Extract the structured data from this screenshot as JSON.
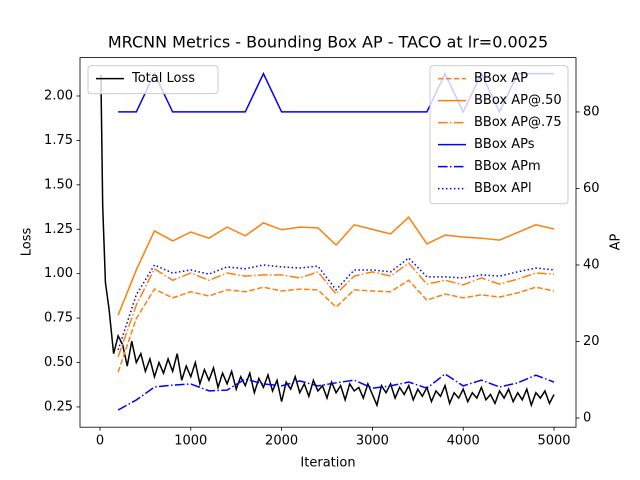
{
  "chart_data": {
    "type": "line",
    "title": "MRCNN Metrics - Bounding Box AP - TACO at lr=0.0025",
    "xlabel": "Iteration",
    "ylabel": "Loss",
    "y2label": "AP",
    "xlim": [
      -220,
      5242
    ],
    "xticks": [
      0,
      1000,
      2000,
      3000,
      4000,
      5000
    ],
    "ylim": [
      0.136,
      2.216
    ],
    "yticks": [
      0.25,
      {
        "value": 0.5,
        "label": "0.50"
      },
      0.75,
      {
        "value": 1.0,
        "label": "1.00"
      },
      1.25,
      {
        "value": 1.5,
        "label": "1.50"
      },
      1.75,
      {
        "value": 2.0,
        "label": "2.00"
      }
    ],
    "y2lim": [
      -2.4,
      94.2
    ],
    "y2ticks": [
      0,
      20,
      40,
      60,
      80
    ],
    "legend": "upper left",
    "legend2": "upper right",
    "series": [
      {
        "name": "Total Loss",
        "color": "#000000",
        "linestyle": "solid",
        "axis": "y",
        "x": [
          10,
          30,
          60,
          100,
          150,
          200,
          250,
          300,
          350,
          400,
          450,
          500,
          550,
          600,
          650,
          700,
          750,
          800,
          850,
          900,
          950,
          1000,
          1050,
          1100,
          1150,
          1200,
          1250,
          1300,
          1350,
          1400,
          1450,
          1500,
          1550,
          1600,
          1650,
          1700,
          1750,
          1800,
          1850,
          1900,
          1950,
          2000,
          2050,
          2100,
          2150,
          2200,
          2250,
          2300,
          2350,
          2400,
          2450,
          2500,
          2550,
          2600,
          2650,
          2700,
          2750,
          2800,
          2850,
          2900,
          2950,
          3000,
          3050,
          3100,
          3150,
          3200,
          3250,
          3300,
          3350,
          3400,
          3450,
          3500,
          3550,
          3600,
          3650,
          3700,
          3750,
          3800,
          3850,
          3900,
          3950,
          4000,
          4050,
          4100,
          4150,
          4200,
          4250,
          4300,
          4350,
          4400,
          4450,
          4500,
          4550,
          4600,
          4650,
          4700,
          4750,
          4800,
          4850,
          4900,
          4950,
          5000
        ],
        "values": [
          2.12,
          1.38,
          0.95,
          0.8,
          0.55,
          0.65,
          0.6,
          0.48,
          0.62,
          0.5,
          0.55,
          0.45,
          0.52,
          0.42,
          0.5,
          0.44,
          0.52,
          0.45,
          0.55,
          0.4,
          0.48,
          0.42,
          0.5,
          0.38,
          0.46,
          0.4,
          0.47,
          0.36,
          0.44,
          0.38,
          0.45,
          0.35,
          0.42,
          0.37,
          0.44,
          0.33,
          0.41,
          0.36,
          0.43,
          0.34,
          0.4,
          0.28,
          0.39,
          0.35,
          0.42,
          0.33,
          0.38,
          0.31,
          0.4,
          0.34,
          0.37,
          0.3,
          0.39,
          0.33,
          0.37,
          0.29,
          0.38,
          0.34,
          0.36,
          0.3,
          0.38,
          0.32,
          0.26,
          0.37,
          0.33,
          0.38,
          0.3,
          0.36,
          0.32,
          0.37,
          0.29,
          0.35,
          0.31,
          0.36,
          0.28,
          0.34,
          0.31,
          0.37,
          0.27,
          0.33,
          0.3,
          0.35,
          0.28,
          0.33,
          0.3,
          0.36,
          0.29,
          0.32,
          0.27,
          0.34,
          0.3,
          0.35,
          0.28,
          0.33,
          0.29,
          0.35,
          0.26,
          0.33,
          0.3,
          0.34,
          0.27,
          0.32
        ]
      },
      {
        "name": "BBox AP",
        "color": "#ff7f0e",
        "linestyle": "dashed",
        "axis": "y2",
        "x": [
          200,
          400,
          600,
          800,
          1000,
          1200,
          1400,
          1600,
          1800,
          2000,
          2200,
          2400,
          2600,
          2800,
          3000,
          3200,
          3400,
          3600,
          3800,
          4000,
          4200,
          4400,
          4600,
          4800,
          5000
        ],
        "values": [
          12,
          26,
          33.7,
          31.4,
          33,
          31.9,
          33.5,
          33,
          34.2,
          33.2,
          33.7,
          33.5,
          29,
          33.5,
          33.2,
          33,
          36,
          30.8,
          32.4,
          31.4,
          32.2,
          31.6,
          32.7,
          34.2,
          33.2
        ]
      },
      {
        "name": "BBox AP@.50",
        "color": "#ff7f0e",
        "linestyle": "solid",
        "axis": "y2",
        "x": [
          200,
          400,
          600,
          800,
          1000,
          1200,
          1400,
          1600,
          1800,
          2000,
          2200,
          2400,
          2600,
          2800,
          3000,
          3200,
          3400,
          3600,
          3800,
          4000,
          4200,
          4400,
          4600,
          4800,
          5000
        ],
        "values": [
          26.9,
          38.7,
          48.9,
          46.3,
          48.6,
          47,
          49.9,
          47.6,
          51,
          49.2,
          49.9,
          49.7,
          45.2,
          50.5,
          49.3,
          48.1,
          52.5,
          45.5,
          47.8,
          47.3,
          47,
          46.5,
          48.5,
          50.5,
          49.4
        ]
      },
      {
        "name": "BBox AP@.75",
        "color": "#ff7f0e",
        "linestyle": "dashdot",
        "axis": "y2",
        "x": [
          200,
          400,
          600,
          800,
          1000,
          1200,
          1400,
          1600,
          1800,
          2000,
          2200,
          2400,
          2600,
          2800,
          3000,
          3200,
          3400,
          3600,
          3800,
          4000,
          4200,
          4400,
          4600,
          4800,
          5000
        ],
        "values": [
          16,
          29.5,
          39,
          36,
          37.9,
          36,
          37.9,
          37.1,
          37.4,
          37.4,
          36.6,
          38.2,
          32.4,
          37.1,
          38.2,
          37.1,
          40.5,
          35,
          36,
          34.8,
          36.6,
          35,
          36.3,
          37.9,
          37.6
        ]
      },
      {
        "name": "BBox APs",
        "color": "#0000ff",
        "linestyle": "solid",
        "axis": "y2",
        "x": [
          200,
          400,
          600,
          800,
          1000,
          1200,
          1400,
          1600,
          1800,
          2000,
          2200,
          2400,
          2600,
          2800,
          3000,
          3200,
          3400,
          3600,
          3800,
          4000,
          4200,
          4400,
          4600,
          4800,
          5000
        ],
        "values": [
          80,
          80,
          90,
          80,
          80,
          80,
          80,
          80,
          90,
          80,
          80,
          80,
          80,
          80,
          80,
          80,
          80,
          80,
          90,
          80,
          90,
          80,
          90,
          90,
          90
        ]
      },
      {
        "name": "BBox APm",
        "color": "#0000ff",
        "linestyle": "dashdot",
        "axis": "y2",
        "x": [
          200,
          400,
          600,
          800,
          1000,
          1200,
          1400,
          1600,
          1800,
          2000,
          2200,
          2400,
          2600,
          2800,
          3000,
          3200,
          3400,
          3600,
          3800,
          4000,
          4200,
          4400,
          4600,
          4800,
          5000
        ],
        "values": [
          2.1,
          4.7,
          8.1,
          8.6,
          8.9,
          7.1,
          7.3,
          10.2,
          8.9,
          8.4,
          9.7,
          8.4,
          9.2,
          9.9,
          7.8,
          8.4,
          9.4,
          7.8,
          11.5,
          8.4,
          9.9,
          8.1,
          9.2,
          11.2,
          9.4
        ]
      },
      {
        "name": "BBox APl",
        "color": "#0000ff",
        "linestyle": "dotted",
        "axis": "y2",
        "x": [
          200,
          400,
          600,
          800,
          1000,
          1200,
          1400,
          1600,
          1800,
          2000,
          2200,
          2400,
          2600,
          2800,
          3000,
          3200,
          3400,
          3600,
          3800,
          4000,
          4200,
          4400,
          4600,
          4800,
          5000
        ],
        "values": [
          17.8,
          32.2,
          40,
          37.9,
          38.7,
          37.6,
          39.5,
          39,
          40,
          39.5,
          39.2,
          39.7,
          33.5,
          38.7,
          38.7,
          38.2,
          41.8,
          36.9,
          36.9,
          36.6,
          37.4,
          37.1,
          38.2,
          39.2,
          38.7
        ]
      }
    ]
  }
}
